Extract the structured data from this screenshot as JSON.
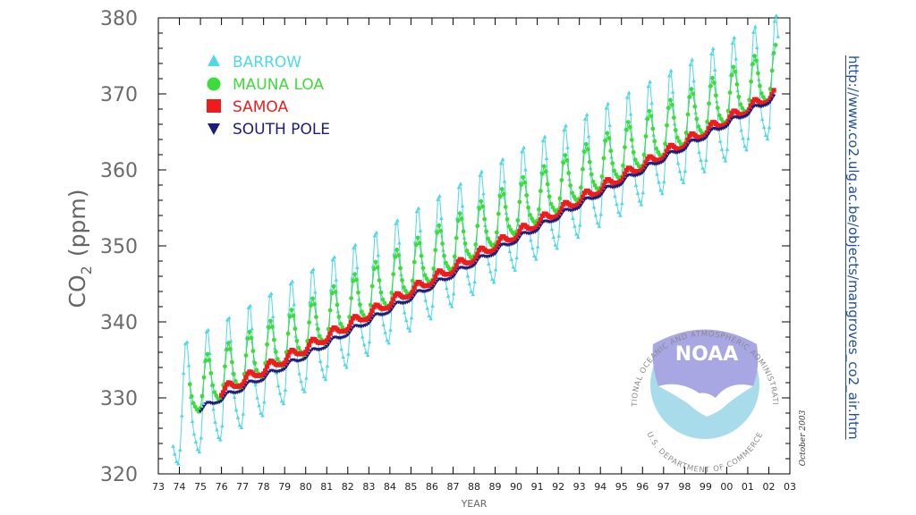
{
  "chart_data": {
    "type": "line",
    "title": "",
    "xlabel": "YEAR",
    "ylabel": "CO",
    "ylabel_subscript": "2",
    "ylabel_unit": "(ppm)",
    "xlim": [
      1973,
      2003
    ],
    "ylim": [
      320,
      380
    ],
    "x_ticks": [
      "73",
      "74",
      "75",
      "76",
      "77",
      "78",
      "79",
      "80",
      "81",
      "82",
      "83",
      "84",
      "85",
      "86",
      "87",
      "88",
      "89",
      "90",
      "91",
      "92",
      "93",
      "94",
      "95",
      "96",
      "97",
      "98",
      "99",
      "00",
      "01",
      "02",
      "03"
    ],
    "y_ticks": [
      "320",
      "330",
      "340",
      "350",
      "360",
      "370",
      "380"
    ],
    "series": [
      {
        "name": "BARROW",
        "marker": "triangle",
        "color": "#4fd9e6",
        "start": 1973.7,
        "end": 2002.5,
        "trend": [
          [
            1973.7,
            327.5
          ],
          [
            1980,
            337.5
          ],
          [
            1990,
            353.5
          ],
          [
            2002.5,
            371.5
          ]
        ],
        "amplitude": 7.5,
        "sample_step": 0.0833
      },
      {
        "name": "MAUNA LOA",
        "marker": "circle",
        "color": "#3cdc3c",
        "start": 1974.5,
        "end": 2002.4,
        "trend": [
          [
            1974.5,
            330.5
          ],
          [
            1980,
            338.5
          ],
          [
            1990,
            354.5
          ],
          [
            2002.4,
            372.5
          ]
        ],
        "amplitude": 3.3,
        "sample_step": 0.0833
      },
      {
        "name": "SAMOA",
        "marker": "square",
        "color": "#ee1c1c",
        "start": 1976,
        "end": 2002.3,
        "trend": [
          [
            1976,
            330.8
          ],
          [
            1980,
            336.5
          ],
          [
            1990,
            351.5
          ],
          [
            2002.3,
            370
          ]
        ],
        "amplitude": 0.6,
        "sample_step": 0.0833
      },
      {
        "name": "SOUTH POLE",
        "marker": "triangle-down",
        "color": "#1c1c7a",
        "start": 1975,
        "end": 2002.3,
        "trend": [
          [
            1975,
            328.5
          ],
          [
            1980,
            335.5
          ],
          [
            1990,
            350.8
          ],
          [
            2002.3,
            369.5
          ]
        ],
        "amplitude": 0.35,
        "sample_step": 0.0833
      }
    ],
    "legend": {
      "position": "top-left"
    },
    "credit": "October 2003"
  },
  "logo": {
    "acronym": "NOAA",
    "ring_text_top": "NATIONAL OCEANIC AND ATMOSPHERIC ADMINISTRATION",
    "ring_text_bottom": "U.S. DEPARTMENT OF COMMERCE",
    "color_light": "#a8dcea",
    "color_dark": "#a9a6e4"
  },
  "side_link": {
    "text": "http://www.co2.ulg.ac.be/objects/mangroves_co2_air.htm"
  }
}
